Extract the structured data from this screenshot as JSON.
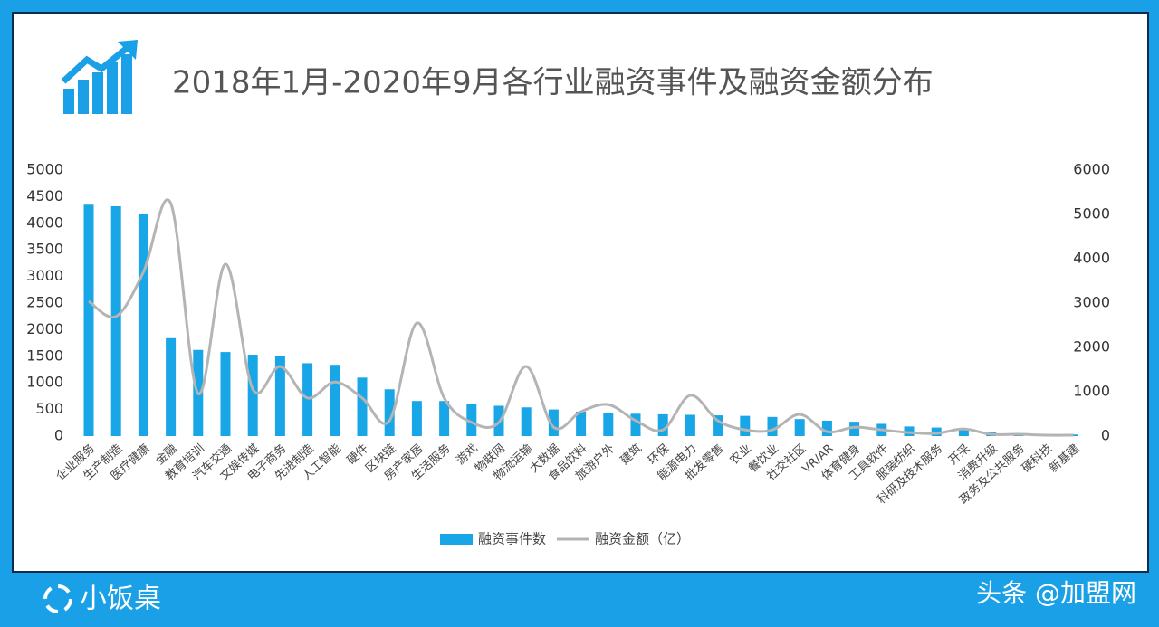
{
  "chart_data": {
    "type": "bar",
    "title": "2018年1月-2020年9月各行业融资事件及融资金额分布",
    "categories": [
      "企业服务",
      "生产制造",
      "医疗健康",
      "金融",
      "教育培训",
      "汽车交通",
      "文娱传媒",
      "电子商务",
      "先进制造",
      "人工智能",
      "硬件",
      "区块链",
      "房产家居",
      "生活服务",
      "游戏",
      "物联网",
      "物流运输",
      "大数据",
      "食品饮料",
      "旅游户外",
      "建筑",
      "环保",
      "能源电力",
      "批发零售",
      "农业",
      "餐饮业",
      "社交社区",
      "VR/AR",
      "体育健身",
      "工具软件",
      "服装纺织",
      "科研及技术服务",
      "开采",
      "消费升级",
      "政务及公共服务",
      "硬科技",
      "新基建"
    ],
    "series": [
      {
        "name": "融资事件数",
        "color": "#19a6e6",
        "type": "bar",
        "values": [
          4350,
          4320,
          4170,
          1840,
          1620,
          1580,
          1530,
          1510,
          1370,
          1340,
          1100,
          880,
          660,
          660,
          600,
          570,
          540,
          500,
          460,
          430,
          420,
          410,
          400,
          390,
          380,
          360,
          320,
          290,
          270,
          230,
          180,
          160,
          110,
          70,
          30,
          20,
          30
        ]
      },
      {
        "name": "融资金额（亿）",
        "color": "#b4b4b4",
        "type": "line",
        "axis": "y2",
        "values": [
          3040,
          2700,
          3700,
          5250,
          960,
          3880,
          1060,
          1570,
          860,
          1220,
          860,
          350,
          2550,
          860,
          310,
          310,
          1570,
          200,
          550,
          710,
          350,
          140,
          920,
          350,
          140,
          140,
          490,
          100,
          200,
          140,
          80,
          60,
          160,
          40,
          40,
          20,
          20
        ]
      }
    ],
    "ylim": [
      0,
      5000
    ],
    "yticks": [
      0,
      500,
      1000,
      1500,
      2000,
      2500,
      3000,
      3500,
      4000,
      4500,
      5000
    ],
    "y2lim": [
      0,
      6000
    ],
    "y2ticks": [
      0,
      1000,
      2000,
      3000,
      4000,
      5000,
      6000
    ],
    "legend": "bottom"
  },
  "footer": {
    "logo": "小饭桌",
    "watermark": "头条 @加盟网"
  }
}
